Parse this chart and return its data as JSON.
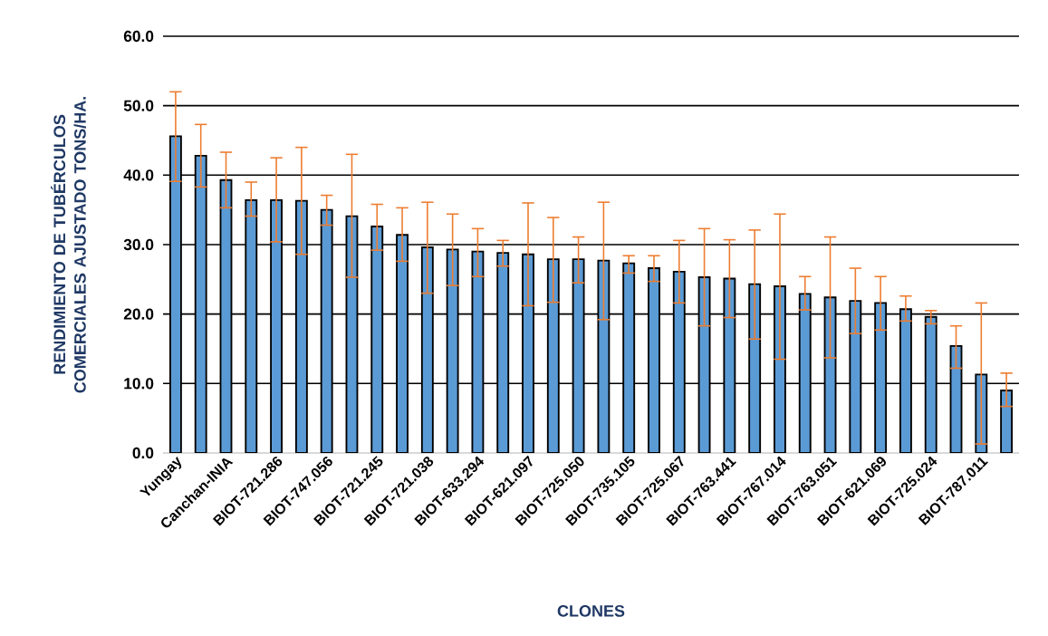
{
  "chart_data": {
    "type": "bar",
    "xlabel": "CLONES",
    "ylabel": "RENDIMIENTO DE TUBÉRCULOS COMERCIALES AJUSTADO TONS/HA.",
    "categories": [
      "Yungay",
      null,
      "Canchan-INIA",
      null,
      "BIOT-721.286",
      null,
      "BIOT-747.056",
      null,
      "BIOT-721.245",
      null,
      "BIOT-721.038",
      null,
      "BIOT-633.294",
      null,
      "BIOT-621.097",
      null,
      "BIOT-725.050",
      null,
      "BIOT-735.105",
      null,
      "BIOT-725.067",
      null,
      "BIOT-763.441",
      null,
      "BIOT-767.014",
      null,
      "BIOT-763.051",
      null,
      "BIOT-621.069",
      null,
      "BIOT-725.024",
      null,
      "BIOT-787.011",
      null
    ],
    "values": [
      45.6,
      42.8,
      39.3,
      36.4,
      36.4,
      36.3,
      35.0,
      34.1,
      32.6,
      31.4,
      29.6,
      29.3,
      29.0,
      28.8,
      28.6,
      27.9,
      27.9,
      27.7,
      27.3,
      26.6,
      26.1,
      25.3,
      25.1,
      24.3,
      24.0,
      22.9,
      22.4,
      21.9,
      21.6,
      20.7,
      19.6,
      15.4,
      11.3,
      9.0
    ],
    "errors": [
      [
        39.1,
        52.0
      ],
      [
        38.3,
        47.3
      ],
      [
        35.3,
        43.3
      ],
      [
        34.1,
        39.0
      ],
      [
        30.4,
        42.5
      ],
      [
        28.6,
        44.0
      ],
      [
        32.8,
        37.1
      ],
      [
        25.3,
        43.0
      ],
      [
        29.2,
        35.8
      ],
      [
        27.6,
        35.3
      ],
      [
        23.0,
        36.1
      ],
      [
        24.1,
        34.4
      ],
      [
        25.4,
        32.3
      ],
      [
        26.9,
        30.6
      ],
      [
        21.2,
        36.0
      ],
      [
        21.7,
        33.9
      ],
      [
        24.5,
        31.1
      ],
      [
        19.2,
        36.1
      ],
      [
        25.9,
        28.4
      ],
      [
        24.7,
        28.4
      ],
      [
        21.6,
        30.6
      ],
      [
        18.3,
        32.3
      ],
      [
        19.5,
        30.7
      ],
      [
        16.4,
        32.1
      ],
      [
        13.5,
        34.4
      ],
      [
        20.6,
        25.4
      ],
      [
        13.7,
        31.1
      ],
      [
        17.2,
        26.6
      ],
      [
        17.7,
        25.4
      ],
      [
        19.0,
        22.6
      ],
      [
        18.6,
        20.5
      ],
      [
        12.2,
        18.3
      ],
      [
        1.3,
        21.6
      ],
      [
        6.7,
        11.5
      ]
    ],
    "color": "#5b9bd5",
    "ylim": [
      0,
      60
    ],
    "yticks": [
      {
        "value": 0,
        "label": "0.0"
      },
      {
        "value": 10,
        "label": "10.0"
      },
      {
        "value": 20,
        "label": "20.0"
      },
      {
        "value": 30,
        "label": "30.0"
      },
      {
        "value": 40,
        "label": "40.0"
      },
      {
        "value": 50,
        "label": "50.0"
      },
      {
        "value": 60,
        "label": "60.0"
      }
    ],
    "grid": "y"
  }
}
